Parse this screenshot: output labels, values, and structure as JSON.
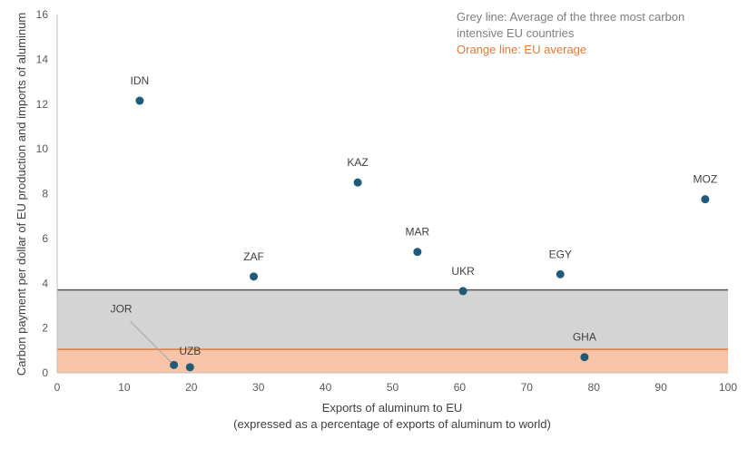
{
  "chart_data": {
    "type": "scatter",
    "xlabel_line1": "Exports of aluminum to EU",
    "xlabel_line2": "(expressed as a percentage of exports of aluminum to world)",
    "ylabel": "Carbon payment per dollar of EU production and imports of aluminum",
    "xlim": [
      0,
      100
    ],
    "ylim": [
      0,
      16
    ],
    "x_ticks": [
      0,
      10,
      20,
      30,
      40,
      50,
      60,
      70,
      80,
      90,
      100
    ],
    "y_ticks": [
      0,
      2,
      4,
      6,
      8,
      10,
      12,
      14,
      16
    ],
    "grid": false,
    "points": [
      {
        "label": "IDN",
        "x": 12.3,
        "y": 12.15
      },
      {
        "label": "KAZ",
        "x": 44.8,
        "y": 8.5
      },
      {
        "label": "MOZ",
        "x": 96.6,
        "y": 7.75
      },
      {
        "label": "MAR",
        "x": 53.7,
        "y": 5.4
      },
      {
        "label": "ZAF",
        "x": 29.3,
        "y": 4.3
      },
      {
        "label": "EGY",
        "x": 75.0,
        "y": 4.4
      },
      {
        "label": "UKR",
        "x": 60.5,
        "y": 3.65
      },
      {
        "label": "GHA",
        "x": 78.6,
        "y": 0.7
      },
      {
        "label": "JOR",
        "x": 17.4,
        "y": 0.35
      },
      {
        "label": "UZB",
        "x": 19.8,
        "y": 0.25
      }
    ],
    "reference_lines": [
      {
        "name": "Grey line: Average of the three most carbon intensive EU countries",
        "y": 3.7,
        "color": "#595959",
        "fill": "#d4d4d4"
      },
      {
        "name": "Orange line: EU average",
        "y": 1.05,
        "color": "#e07b39",
        "fill": "#f7c4a8"
      }
    ],
    "point_color": "#1f5a78",
    "annotations": {
      "grey_line_note_line1": "Grey line: Average of the three most carbon",
      "grey_line_note_line2": "intensive EU countries",
      "orange_line_note": "Orange line: EU average"
    }
  }
}
